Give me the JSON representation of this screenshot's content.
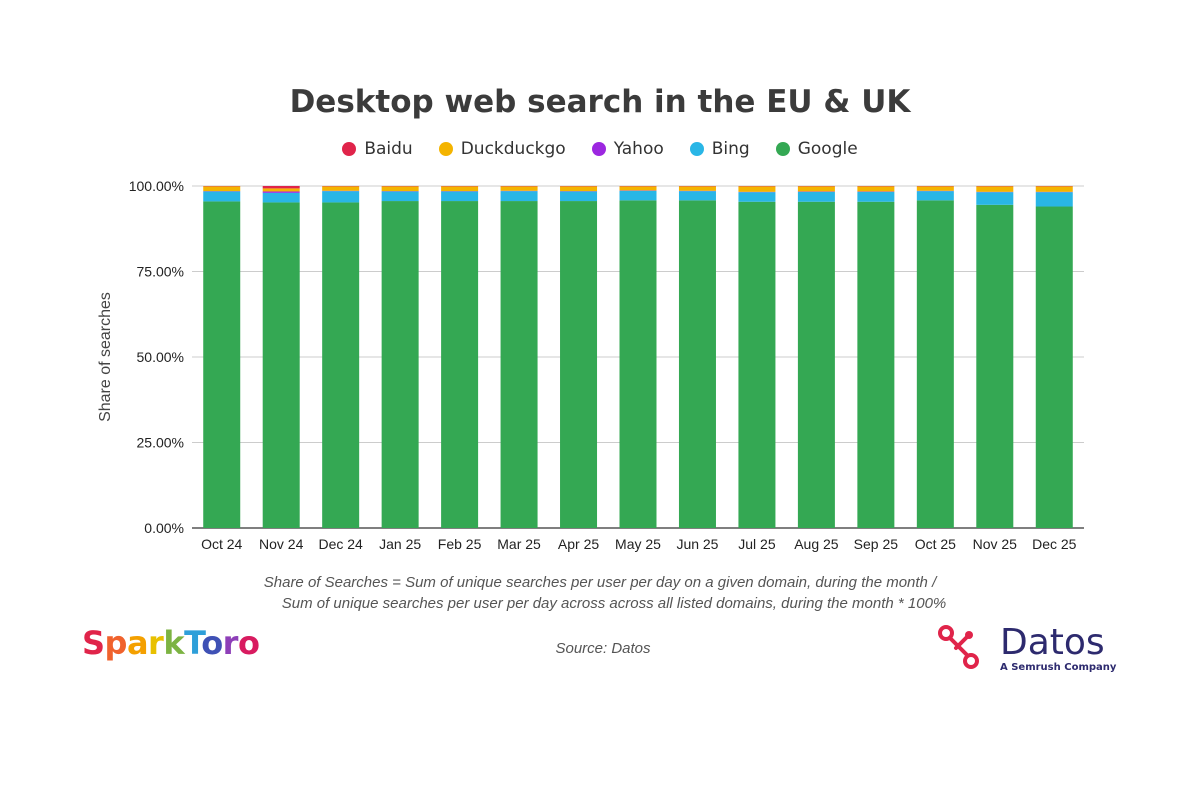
{
  "chart_data": {
    "type": "bar",
    "stacked": true,
    "title": "Desktop web search in the EU & UK",
    "ylabel": "Share of searches",
    "xlabel": "",
    "ylim": [
      0,
      100
    ],
    "y_ticks": [
      "0.00%",
      "25.00%",
      "50.00%",
      "75.00%",
      "100.00%"
    ],
    "grid": true,
    "legend_position": "top",
    "categories": [
      "Oct 24",
      "Nov 24",
      "Dec 24",
      "Jan 25",
      "Feb 25",
      "Mar 25",
      "Apr 25",
      "May 25",
      "Jun 25",
      "Jul 25",
      "Aug 25",
      "Sep 25",
      "Oct 25",
      "Nov 25",
      "Dec 25"
    ],
    "series": [
      {
        "name": "Google",
        "color": "#34a853",
        "values": [
          95.5,
          95.2,
          95.2,
          95.6,
          95.6,
          95.6,
          95.6,
          95.8,
          95.8,
          95.4,
          95.4,
          95.4,
          95.8,
          94.5,
          94.0
        ]
      },
      {
        "name": "Bing",
        "color": "#29b6e6",
        "values": [
          2.9,
          2.8,
          3.3,
          2.8,
          2.8,
          2.9,
          2.8,
          2.8,
          2.7,
          2.8,
          2.9,
          2.9,
          2.7,
          3.7,
          4.2
        ]
      },
      {
        "name": "Yahoo",
        "color": "#9c27e0",
        "values": [
          0.1,
          0.4,
          0.1,
          0.1,
          0.1,
          0.1,
          0.1,
          0.1,
          0.1,
          0.1,
          0.1,
          0.1,
          0.1,
          0.1,
          0.1
        ]
      },
      {
        "name": "Duckduckgo",
        "color": "#f4b400",
        "values": [
          1.4,
          0.9,
          1.3,
          1.4,
          1.4,
          1.3,
          1.4,
          1.2,
          1.3,
          1.6,
          1.5,
          1.5,
          1.3,
          1.6,
          1.6
        ]
      },
      {
        "name": "Baidu",
        "color": "#e0244a",
        "values": [
          0.1,
          0.7,
          0.1,
          0.1,
          0.1,
          0.1,
          0.1,
          0.1,
          0.1,
          0.1,
          0.1,
          0.1,
          0.1,
          0.1,
          0.1
        ]
      }
    ],
    "legend_order": [
      "Baidu",
      "Duckduckgo",
      "Yahoo",
      "Bing",
      "Google"
    ]
  },
  "footnote": {
    "line1": "Share of Searches = Sum of unique searches per user per day on a given domain, during the month /",
    "line2": "Sum of unique searches per user per day across across all listed domains, during the month * 100%"
  },
  "source": "Source: Datos",
  "logos": {
    "sparktoro": {
      "text": "SparkToro",
      "letter_colors": [
        "#e0244a",
        "#f0622d",
        "#f4a000",
        "#e8c000",
        "#7cb342",
        "#2e9fd9",
        "#3f51b5",
        "#8e3fb8",
        "#d81b60"
      ]
    },
    "datos": {
      "name": "Datos",
      "tagline": "A Semrush Company",
      "mark_color": "#e0244a",
      "text_color": "#2d2a6e"
    }
  }
}
